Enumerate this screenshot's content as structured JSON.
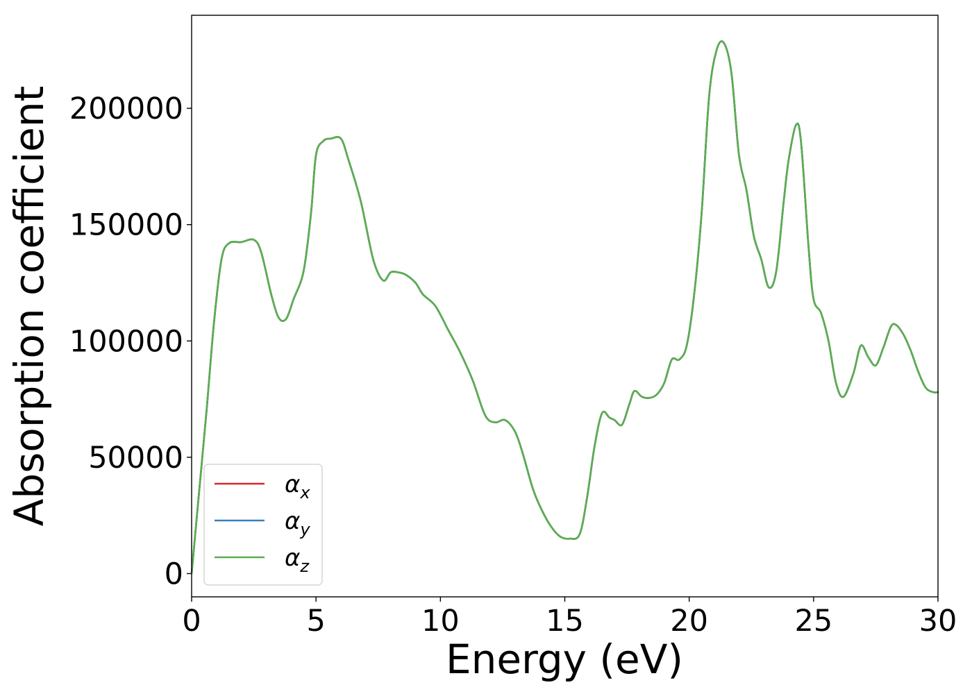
{
  "chart_data": {
    "type": "line",
    "title": "",
    "xlabel": "Energy (eV)",
    "ylabel": "Absorption coefficient",
    "xlim": [
      0,
      30
    ],
    "ylim": [
      -10000,
      240000
    ],
    "x_ticks": [
      0,
      5,
      10,
      15,
      20,
      25,
      30
    ],
    "x_tick_labels": [
      "0",
      "5",
      "10",
      "15",
      "20",
      "25",
      "30"
    ],
    "y_ticks": [
      0,
      50000,
      100000,
      150000,
      200000
    ],
    "y_tick_labels": [
      "0",
      "50000",
      "100000",
      "150000",
      "200000"
    ],
    "grid": false,
    "legend_position": "lower-left",
    "series": [
      {
        "name": "αx",
        "base": "α",
        "sub": "x",
        "color": "#d62728"
      },
      {
        "name": "αy",
        "base": "α",
        "sub": "y",
        "color": "#3a7dbf"
      },
      {
        "name": "αz",
        "base": "α",
        "sub": "z",
        "color": "#5aae50"
      }
    ],
    "x": [
      0,
      0.3,
      0.6,
      0.9,
      1.2,
      1.5,
      2.0,
      2.5,
      2.8,
      3.2,
      3.5,
      3.8,
      4.1,
      4.5,
      4.8,
      5.0,
      5.3,
      5.6,
      6.0,
      6.3,
      6.8,
      7.3,
      7.7,
      8.0,
      8.3,
      8.6,
      9.0,
      9.3,
      9.8,
      10.3,
      10.8,
      11.3,
      11.8,
      12.2,
      12.6,
      13.0,
      13.3,
      13.7,
      14.0,
      14.4,
      14.8,
      15.2,
      15.6,
      15.9,
      16.2,
      16.5,
      16.8,
      17.0,
      17.3,
      17.6,
      17.8,
      18.1,
      18.4,
      18.7,
      19.0,
      19.3,
      19.6,
      19.9,
      20.2,
      20.5,
      20.8,
      21.1,
      21.4,
      21.7,
      22.0,
      22.3,
      22.6,
      22.9,
      23.2,
      23.5,
      23.8,
      24.0,
      24.3,
      24.5,
      24.8,
      25.0,
      25.3,
      25.6,
      25.9,
      26.2,
      26.6,
      26.9,
      27.2,
      27.5,
      27.8,
      28.1,
      28.3,
      28.6,
      28.9,
      29.2,
      29.5,
      29.8,
      30.0
    ],
    "y_values": [
      0,
      35000,
      70000,
      108000,
      135000,
      142000,
      142500,
      143500,
      138000,
      120000,
      110000,
      109500,
      118000,
      130000,
      155000,
      180000,
      186000,
      187000,
      187000,
      178000,
      160000,
      135000,
      126000,
      129500,
      129500,
      128500,
      125000,
      120000,
      115000,
      105000,
      95000,
      83000,
      68000,
      65000,
      66000,
      61000,
      52000,
      37000,
      29000,
      21000,
      16000,
      15000,
      17000,
      33000,
      55000,
      69000,
      67000,
      66000,
      64000,
      73000,
      78500,
      76000,
      75500,
      77000,
      82000,
      92000,
      92000,
      98000,
      120000,
      155000,
      205000,
      225000,
      228000,
      215000,
      180000,
      165000,
      145000,
      135000,
      123000,
      130000,
      160000,
      178000,
      193000,
      185000,
      140000,
      118000,
      112000,
      100000,
      82000,
      76000,
      86000,
      98000,
      93000,
      89500,
      97000,
      106000,
      107000,
      103000,
      96000,
      87000,
      80000,
      78000,
      78000
    ]
  }
}
